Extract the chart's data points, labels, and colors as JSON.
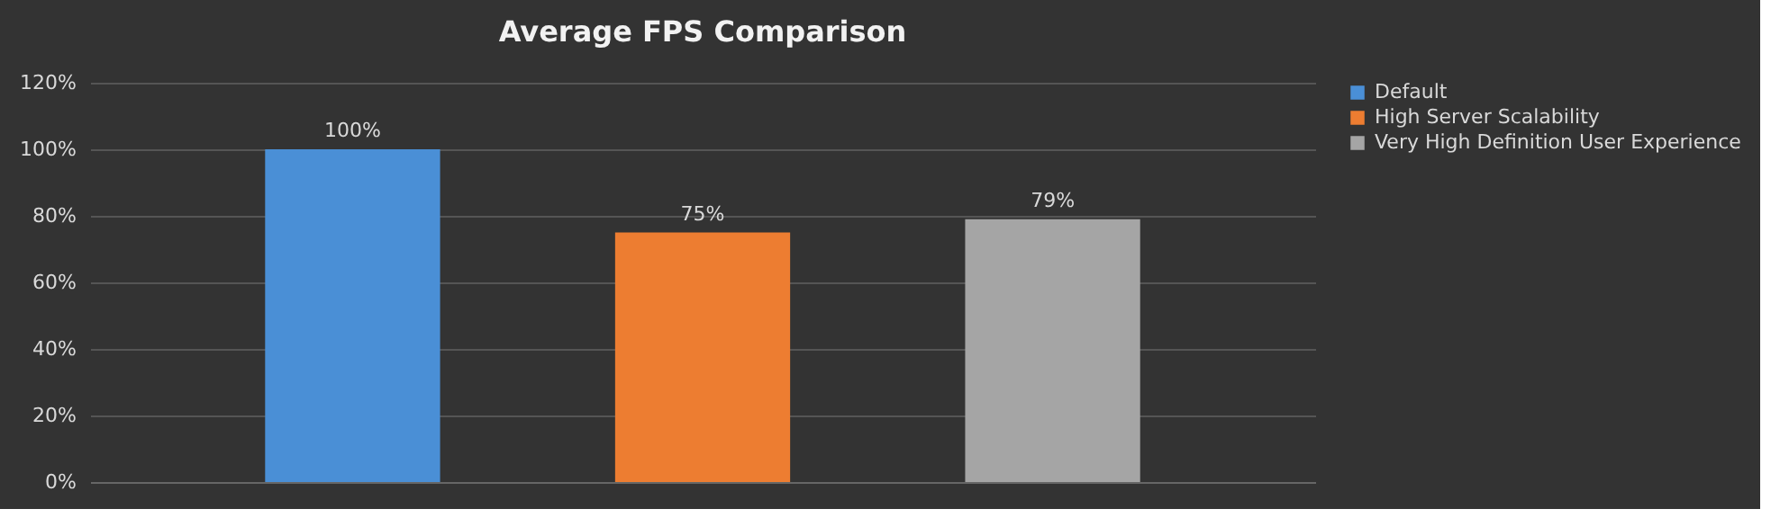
{
  "chart_data": {
    "type": "bar",
    "title": "Average  FPS  Comparison",
    "categories": [
      null
    ],
    "series": [
      {
        "name": "Default",
        "color": "#4a8fd6",
        "values": [
          100
        ],
        "value_labels": [
          "100%"
        ]
      },
      {
        "name": "High Server Scalability",
        "color": "#ed7d31",
        "values": [
          75
        ],
        "value_labels": [
          "75%"
        ]
      },
      {
        "name": "Very High Definition User Experience",
        "color": "#a5a5a5",
        "values": [
          79
        ],
        "value_labels": [
          "79%"
        ]
      }
    ],
    "ylim": [
      0,
      120
    ],
    "yticks": [
      {
        "value": 0,
        "label": "0%"
      },
      {
        "value": 20,
        "label": "20%"
      },
      {
        "value": 40,
        "label": "40%"
      },
      {
        "value": 60,
        "label": "60%"
      },
      {
        "value": 80,
        "label": "80%"
      },
      {
        "value": 100,
        "label": "100%"
      },
      {
        "value": 120,
        "label": "120%"
      }
    ],
    "grid": "y",
    "legend": "right",
    "tick_labels": "y"
  }
}
